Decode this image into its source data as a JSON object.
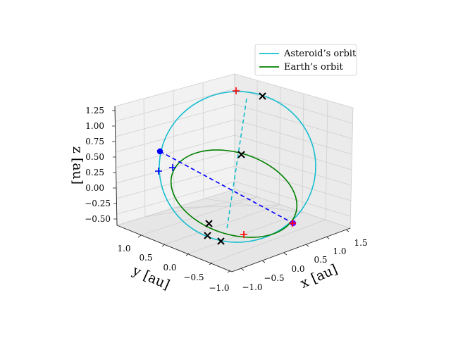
{
  "chart_data": {
    "type": "line3d",
    "axes": {
      "x": {
        "label": "x [au]",
        "ticks": [
          "−1.0",
          "−0.5",
          "0.0",
          "0.5",
          "1.0",
          "1.5"
        ]
      },
      "y": {
        "label": "y [au]",
        "ticks": [
          "1.0",
          "0.5",
          "0.0",
          "−0.5",
          "−1.0"
        ]
      },
      "z": {
        "label": "z [au]",
        "ticks": [
          "1.25",
          "1.00",
          "0.75",
          "0.50",
          "0.25",
          "0.00",
          "−0.25",
          "−0.50"
        ]
      }
    },
    "grid": true,
    "legend": {
      "placement": "top-right",
      "entries": [
        "Asteroid’s orbit",
        "Earth’s orbit"
      ]
    },
    "series": [
      {
        "name": "Asteroid’s orbit",
        "color": "#17becf",
        "style": "solid"
      },
      {
        "name": "Earth’s orbit",
        "color": "#008000",
        "style": "solid"
      }
    ],
    "colors": {
      "asteroid": "#17becf",
      "earth": "#008000",
      "marker_blue": "#0000ff",
      "marker_red": "#ff0000",
      "marker_black": "#000000",
      "marker_purple": "#7f00ff"
    }
  }
}
